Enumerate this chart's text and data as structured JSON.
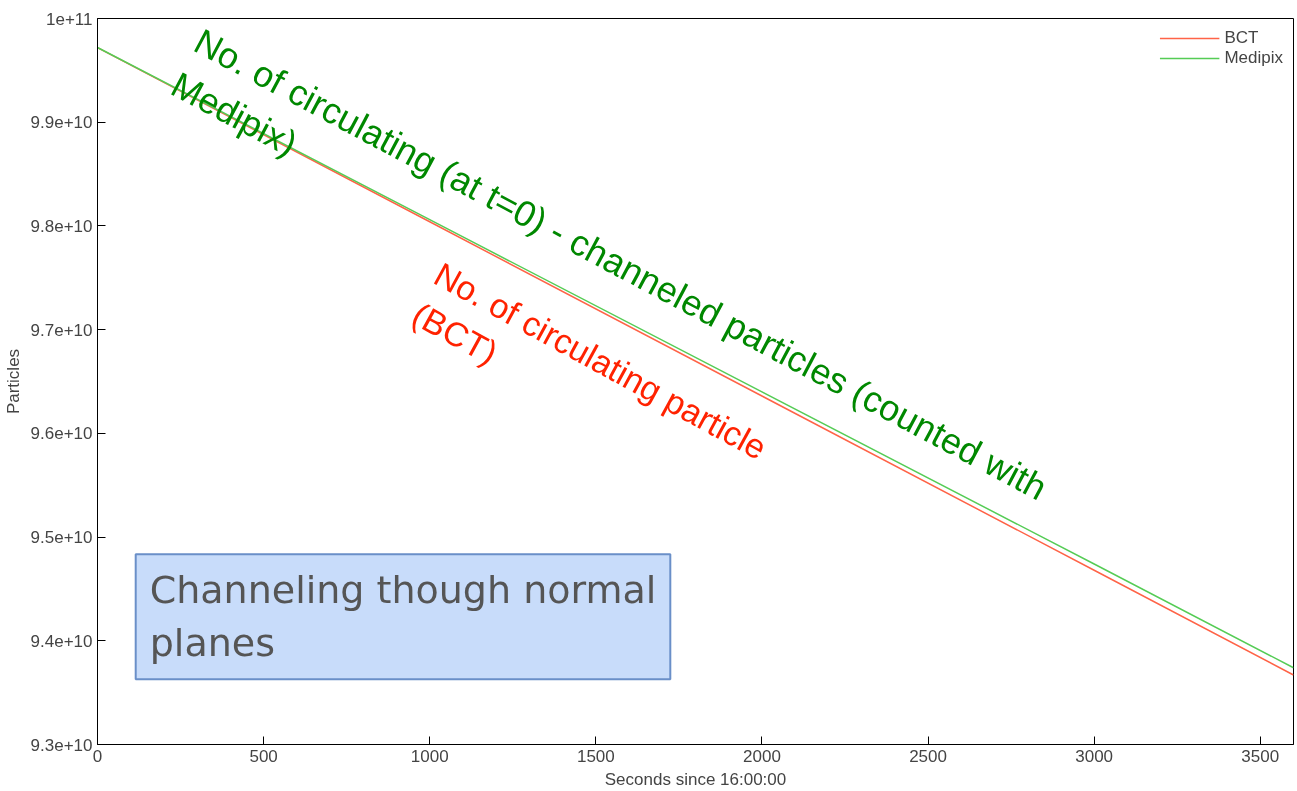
{
  "chart_data": {
    "type": "line",
    "xlabel": "Seconds since 16:00:00",
    "ylabel": "Particles",
    "x": [
      0,
      1000,
      2000,
      3000,
      3600
    ],
    "series": [
      {
        "name": "BCT",
        "color": "#ff6347",
        "values": [
          99720000000.0,
          98040000000.0,
          96360000000.0,
          94680000000.0,
          93670000000.0
        ]
      },
      {
        "name": "Medipix",
        "color": "#55cc55",
        "values": [
          99720000000.0,
          98060000000.0,
          96400000000.0,
          94740000000.0,
          93740000000.0
        ]
      }
    ],
    "xlim": [
      0,
      3600
    ],
    "xticks": [
      0,
      500,
      1000,
      1500,
      2000,
      2500,
      3000,
      3500
    ],
    "ylim": [
      93000000000.0,
      100000000000.0
    ],
    "yticks": [
      {
        "value": 93000000000.0,
        "label": "9.3e+10"
      },
      {
        "value": 94000000000.0,
        "label": "9.4e+10"
      },
      {
        "value": 95000000000.0,
        "label": "9.5e+10"
      },
      {
        "value": 96000000000.0,
        "label": "9.6e+10"
      },
      {
        "value": 97000000000.0,
        "label": "9.7e+10"
      },
      {
        "value": 98000000000.0,
        "label": "9.8e+10"
      },
      {
        "value": 99000000000.0,
        "label": "9.9e+10"
      },
      {
        "value": 100000000000.0,
        "label": "1e+11"
      }
    ],
    "annotations": [
      "No. of circulating (at t=0) - channeled particles (counted with\nMedipix)",
      "No. of circulating particle\n(BCT)",
      "Channeling though normal\nplanes"
    ],
    "legend": "top right",
    "grid": false
  }
}
